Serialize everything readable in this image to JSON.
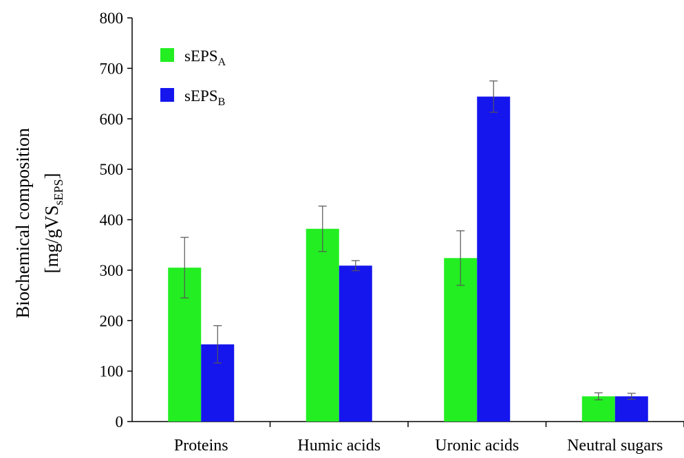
{
  "chart_data": {
    "type": "bar",
    "categories": [
      "Proteins",
      "Humic acids",
      "Uronic acids",
      "Neutral sugars"
    ],
    "series": [
      {
        "name": "sEPS",
        "name_sub": "A",
        "color": "#22ee22",
        "values": [
          305,
          382,
          324,
          50
        ],
        "errors": [
          60,
          45,
          54,
          7
        ]
      },
      {
        "name": "sEPS",
        "name_sub": "B",
        "color": "#1515ee",
        "values": [
          153,
          309,
          644,
          50
        ],
        "errors": [
          37,
          10,
          31,
          6
        ]
      }
    ],
    "ylabel_line1": "Biochemical composition",
    "ylabel_line2_prefix": "[mg/gVS",
    "ylabel_line2_sub": "sEPS",
    "ylabel_line2_suffix": "]",
    "ylim": [
      0,
      800
    ],
    "yticks": [
      0,
      100,
      200,
      300,
      400,
      500,
      600,
      700,
      800
    ],
    "grid": false,
    "legend_position": "top-left"
  }
}
